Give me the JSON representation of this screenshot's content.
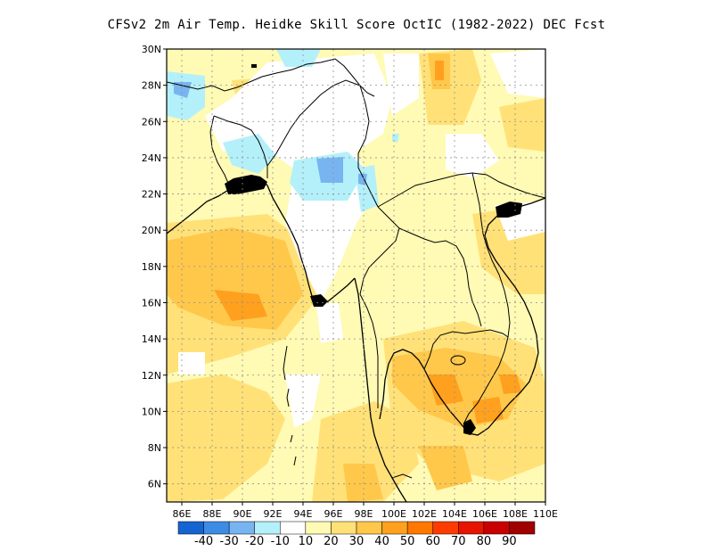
{
  "title": "CFSv2  2m Air Temp. Heidke Skill Score OctIC (1982-2022) DEC Fcst",
  "map": {
    "lon_range": [
      85,
      110
    ],
    "lat_range": [
      5,
      30
    ],
    "lat_ticks": [
      {
        "value": 30,
        "label": "30N"
      },
      {
        "value": 28,
        "label": "28N"
      },
      {
        "value": 26,
        "label": "26N"
      },
      {
        "value": 24,
        "label": "24N"
      },
      {
        "value": 22,
        "label": "22N"
      },
      {
        "value": 20,
        "label": "20N"
      },
      {
        "value": 18,
        "label": "18N"
      },
      {
        "value": 16,
        "label": "16N"
      },
      {
        "value": 14,
        "label": "14N"
      },
      {
        "value": 12,
        "label": "12N"
      },
      {
        "value": 10,
        "label": "10N"
      },
      {
        "value": 8,
        "label": "8N"
      },
      {
        "value": 6,
        "label": "6N"
      }
    ],
    "lon_ticks": [
      {
        "value": 86,
        "label": "86E"
      },
      {
        "value": 88,
        "label": "88E"
      },
      {
        "value": 90,
        "label": "90E"
      },
      {
        "value": 92,
        "label": "92E"
      },
      {
        "value": 94,
        "label": "94E"
      },
      {
        "value": 96,
        "label": "96E"
      },
      {
        "value": 98,
        "label": "98E"
      },
      {
        "value": 100,
        "label": "100E"
      },
      {
        "value": 102,
        "label": "102E"
      },
      {
        "value": 104,
        "label": "104E"
      },
      {
        "value": 106,
        "label": "106E"
      },
      {
        "value": 108,
        "label": "108E"
      },
      {
        "value": 110,
        "label": "110E"
      }
    ]
  },
  "colorbar": {
    "colors": [
      "#1464d2",
      "#3c8ce6",
      "#78b4f0",
      "#b4f0fa",
      "#ffffff",
      "#fffab4",
      "#ffe178",
      "#ffc84b",
      "#ffa01e",
      "#ff7800",
      "#ff3c00",
      "#e61400",
      "#c80000",
      "#a00000"
    ],
    "labels": [
      "-40",
      "-30",
      "-20",
      "-10",
      "10",
      "20",
      "30",
      "40",
      "50",
      "60",
      "70",
      "80",
      "90"
    ]
  }
}
